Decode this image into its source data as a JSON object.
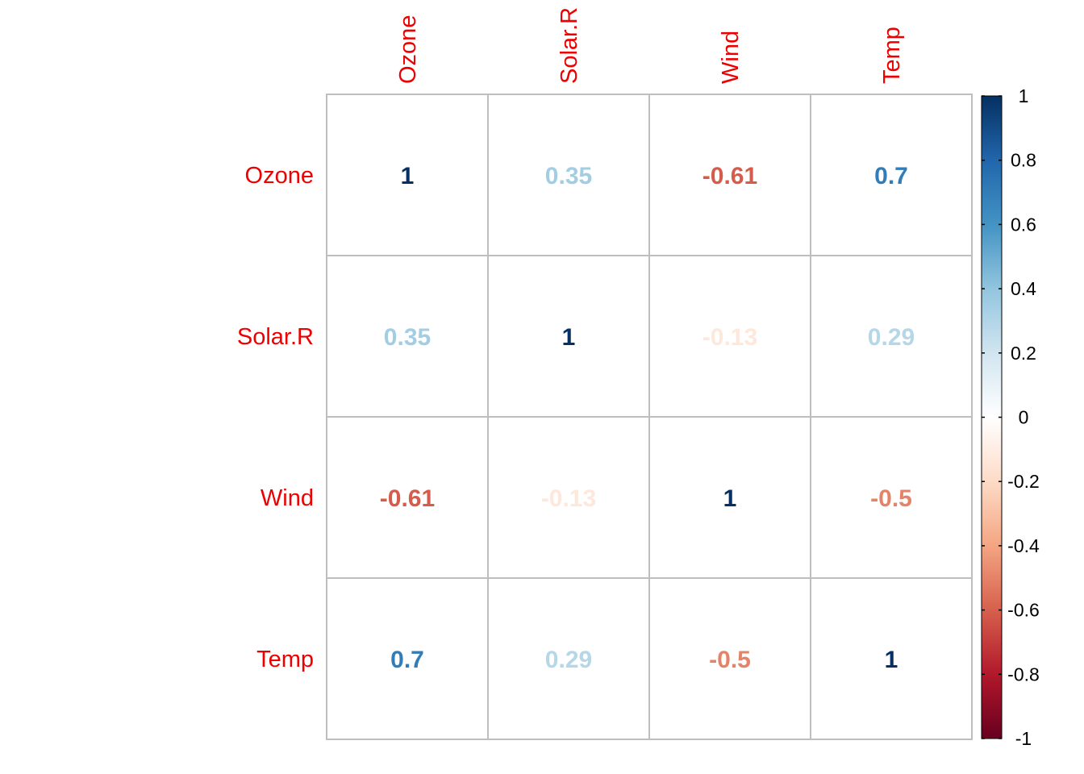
{
  "chart_data": {
    "type": "heatmap",
    "variables": [
      "Ozone",
      "Solar.R",
      "Wind",
      "Temp"
    ],
    "matrix": [
      [
        1,
        0.35,
        -0.61,
        0.7
      ],
      [
        0.35,
        1,
        -0.13,
        0.29
      ],
      [
        -0.61,
        -0.13,
        1,
        -0.5
      ],
      [
        0.7,
        0.29,
        -0.5,
        1
      ]
    ],
    "cell_labels": [
      [
        "1",
        "0.35",
        "-0.61",
        "0.7"
      ],
      [
        "0.35",
        "1",
        "-0.13",
        "0.29"
      ],
      [
        "-0.61",
        "-0.13",
        "1",
        "-0.5"
      ],
      [
        "0.7",
        "0.29",
        "-0.5",
        "1"
      ]
    ],
    "colorbar": {
      "range": [
        -1,
        1
      ],
      "ticks": [
        1,
        0.8,
        0.6,
        0.4,
        0.2,
        0,
        -0.2,
        -0.4,
        -0.6,
        -0.8,
        -1
      ],
      "tick_labels": [
        "1",
        "0.8",
        "0.6",
        "0.4",
        "0.2",
        "0",
        "-0.2",
        "-0.4",
        "-0.6",
        "-0.8",
        "-1"
      ]
    },
    "label_color": "#ee0000",
    "grid_color": "#bebebe",
    "palette": [
      "#67001f",
      "#b2182b",
      "#d6604d",
      "#f4a582",
      "#fddbc7",
      "#ffffff",
      "#d1e5f0",
      "#92c5de",
      "#4393c3",
      "#2166ac",
      "#053061"
    ]
  }
}
